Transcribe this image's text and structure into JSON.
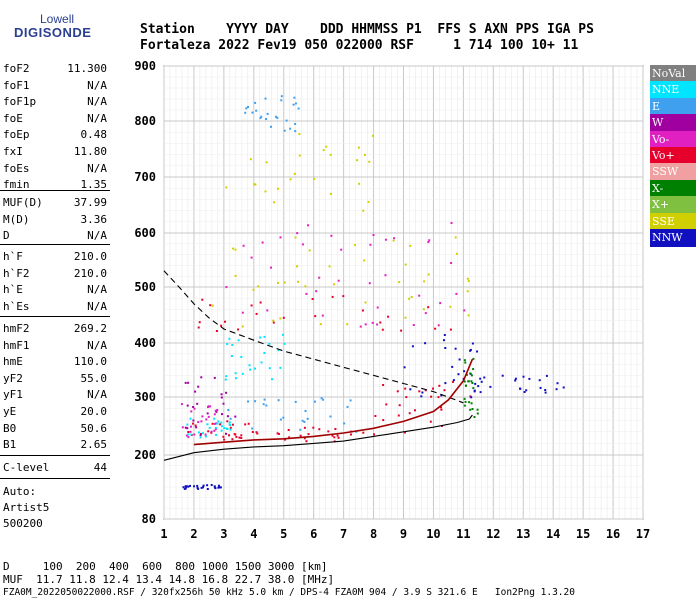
{
  "logo": {
    "line1": "Lowell",
    "line2": "DIGISONDE"
  },
  "header": {
    "row1": "Station    YYYY DAY    DDD HHMMSS P1  FFS S AXN PPS IGA PS",
    "row2": "Fortaleza 2022 Fev19 050 022000 RSF     1 714 100 10+ 11"
  },
  "params": {
    "group1": [
      {
        "name": "foF2",
        "value": "11.300"
      },
      {
        "name": "foF1",
        "value": "N/A"
      },
      {
        "name": "foF1p",
        "value": "N/A"
      },
      {
        "name": "foE",
        "value": "N/A"
      },
      {
        "name": "foEp",
        "value": "0.48"
      },
      {
        "name": "fxI",
        "value": "11.80"
      },
      {
        "name": "foEs",
        "value": "N/A"
      },
      {
        "name": "fmin",
        "value": "1.35"
      }
    ],
    "group2": [
      {
        "name": "MUF(D)",
        "value": "37.99"
      },
      {
        "name": "M(D)",
        "value": "3.36"
      },
      {
        "name": "D",
        "value": "N/A"
      }
    ],
    "group3": [
      {
        "name": "h`F",
        "value": "210.0"
      },
      {
        "name": "h`F2",
        "value": "210.0"
      },
      {
        "name": "h`E",
        "value": "N/A"
      },
      {
        "name": "h`Es",
        "value": "N/A"
      }
    ],
    "group4": [
      {
        "name": "hmF2",
        "value": "269.2"
      },
      {
        "name": "hmF1",
        "value": "N/A"
      },
      {
        "name": "hmE",
        "value": "110.0"
      },
      {
        "name": "yF2",
        "value": "55.0"
      },
      {
        "name": "yF1",
        "value": "N/A"
      },
      {
        "name": "yE",
        "value": "20.0"
      },
      {
        "name": "B0",
        "value": "50.6"
      },
      {
        "name": "B1",
        "value": "2.65"
      }
    ],
    "group5": [
      {
        "name": "C-level",
        "value": "44"
      }
    ],
    "auto": [
      "Auto:",
      "Artist5",
      "500200"
    ]
  },
  "footer": {
    "d_row": "D     100  200  400  600  800 1000 1500 3000 [km]",
    "muf_row": "MUF  11.7 11.8 12.4 13.4 14.8 16.8 22.7 38.0 [MHz]",
    "file_row": "FZA0M_2022050022000.RSF / 320fx256h 50 kHz 5.0 km / DPS-4 FZA0M 904 / 3.9 S 321.6 E   Ion2Png 1.3.20"
  },
  "legend": [
    {
      "label": "NoVal",
      "color": "#808080"
    },
    {
      "label": "NNE",
      "color": "#00e5ff"
    },
    {
      "label": "E",
      "color": "#3fa0f0"
    },
    {
      "label": "W",
      "color": "#a000a0"
    },
    {
      "label": "Vo-",
      "color": "#e020c0"
    },
    {
      "label": "Vo+",
      "color": "#e8002c"
    },
    {
      "label": "SSW",
      "color": "#f0a0a0"
    },
    {
      "label": "X-",
      "color": "#008000"
    },
    {
      "label": "X+",
      "color": "#80c040"
    },
    {
      "label": "SSE",
      "color": "#d0d000"
    },
    {
      "label": "NNW",
      "color": "#1010c0"
    }
  ],
  "chart_data": {
    "type": "scatter",
    "title": "",
    "xlabel": "",
    "ylabel": "",
    "xlim": [
      1,
      17
    ],
    "ylim": [
      80,
      900
    ],
    "x_ticks": [
      1,
      2,
      3,
      4,
      5,
      6,
      7,
      8,
      9,
      10,
      11,
      12,
      13,
      14,
      15,
      16,
      17
    ],
    "y_ticks": [
      80,
      200,
      300,
      400,
      500,
      600,
      700,
      800,
      900
    ],
    "grid": true,
    "legend_position": "right",
    "series": [
      {
        "name": "hmF2 profile",
        "style": "solid",
        "color": "#000000",
        "x": [
          1.0,
          2.0,
          3.0,
          4.0,
          5.0,
          6.0,
          7.0,
          8.0,
          9.0,
          10.0,
          10.8,
          11.2,
          11.3
        ],
        "y": [
          190,
          204,
          210,
          214,
          216,
          220,
          224,
          232,
          240,
          248,
          256,
          262,
          269
        ]
      },
      {
        "name": "MUF(D) curve",
        "style": "dashed",
        "color": "#000000",
        "x": [
          1.0,
          1.5,
          2.0,
          2.5,
          3.0,
          4.0,
          5.0,
          6.0,
          7.0,
          8.0,
          9.0,
          10.0,
          11.0
        ],
        "y": [
          530,
          500,
          470,
          445,
          425,
          405,
          385,
          370,
          355,
          340,
          325,
          310,
          290
        ]
      },
      {
        "name": "O-trace",
        "style": "solid",
        "color": "#a00000",
        "x": [
          2.0,
          3.0,
          4.0,
          5.0,
          6.0,
          7.0,
          8.0,
          9.0,
          10.0,
          10.5,
          11.0,
          11.3
        ],
        "y": [
          218,
          222,
          226,
          228,
          232,
          238,
          246,
          258,
          275,
          295,
          330,
          370
        ]
      }
    ],
    "echo_regions": [
      {
        "x": [
          1.5,
          4.0
        ],
        "y": [
          225,
          260
        ],
        "color": "#e8002c"
      },
      {
        "x": [
          4.0,
          8.0
        ],
        "y": [
          225,
          250
        ],
        "color": "#e8002c"
      },
      {
        "x": [
          8.0,
          11.3
        ],
        "y": [
          240,
          330
        ],
        "color": "#e8002c"
      },
      {
        "x": [
          1.5,
          3.5
        ],
        "y": [
          235,
          340
        ],
        "color": "#a000a0"
      },
      {
        "x": [
          3.0,
          7.5
        ],
        "y": [
          240,
          300
        ],
        "color": "#3fa0f0"
      },
      {
        "x": [
          1.5,
          3.0
        ],
        "y": [
          230,
          290
        ],
        "color": "#e020c0"
      },
      {
        "x": [
          1.7,
          3.2
        ],
        "y": [
          232,
          265
        ],
        "color": "#00e5ff"
      },
      {
        "x": [
          2.0,
          11.5
        ],
        "y": [
          420,
          490
        ],
        "color": "#e8002c"
      },
      {
        "x": [
          2.0,
          11.5
        ],
        "y": [
          430,
          600
        ],
        "color": "#d0d000"
      },
      {
        "x": [
          3.0,
          11.5
        ],
        "y": [
          430,
          620
        ],
        "color": "#e020c0"
      },
      {
        "x": [
          3.0,
          8.0
        ],
        "y": [
          640,
          780
        ],
        "color": "#d0d000"
      },
      {
        "x": [
          3.5,
          5.5
        ],
        "y": [
          780,
          850
        ],
        "color": "#3fa0f0"
      },
      {
        "x": [
          9.0,
          11.5
        ],
        "y": [
          300,
          420
        ],
        "color": "#1010c0"
      },
      {
        "x": [
          11.0,
          11.5
        ],
        "y": [
          260,
          380
        ],
        "color": "#008000"
      },
      {
        "x": [
          11.3,
          14.6
        ],
        "y": [
          310,
          345
        ],
        "color": "#1010c0"
      },
      {
        "x": [
          1.4,
          2.9
        ],
        "y": [
          138,
          146
        ],
        "color": "#1010c0"
      },
      {
        "x": [
          3.0,
          5.0
        ],
        "y": [
          330,
          420
        ],
        "color": "#00e5ff"
      }
    ]
  }
}
